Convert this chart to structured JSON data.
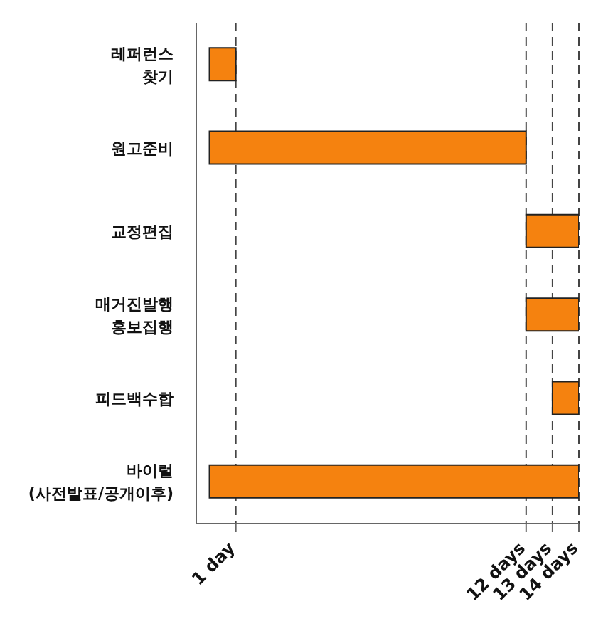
{
  "chart_data": {
    "type": "bar",
    "orientation": "horizontal",
    "categories": [
      "레퍼런스\n찾기",
      "원고준비",
      "교정편집",
      "매거진발행\n홍보집행",
      "피드백수합",
      "바이럴\n(사전발표/공개이후)"
    ],
    "base": [
      0,
      0,
      12,
      12,
      13,
      0
    ],
    "values": [
      1,
      12,
      2,
      2,
      1,
      14
    ],
    "color": "#f5820f",
    "xlim": [
      -0.5,
      14
    ],
    "xticks": [
      {
        "value": 1,
        "label": "1 day"
      },
      {
        "value": 12,
        "label": "12 days"
      },
      {
        "value": 13,
        "label": "13 days"
      },
      {
        "value": 14,
        "label": "14 days"
      }
    ],
    "grid": "x"
  }
}
